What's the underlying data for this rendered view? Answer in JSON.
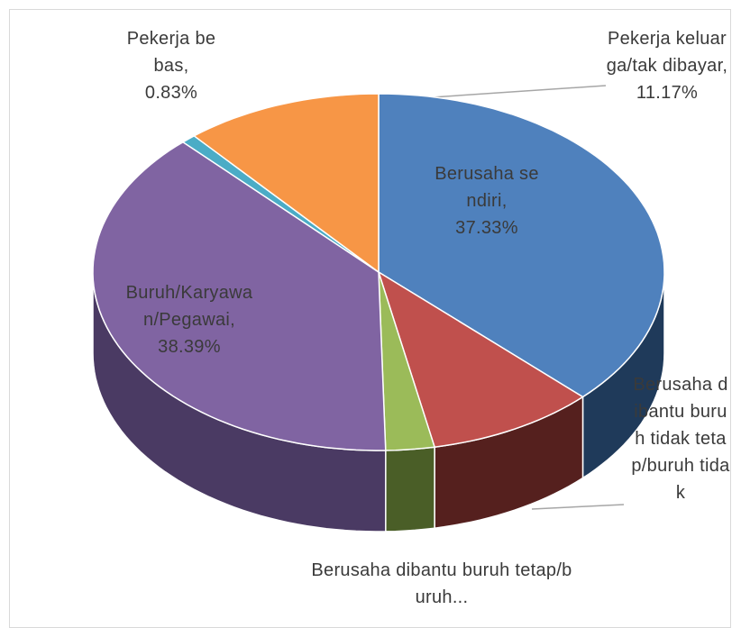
{
  "chart_data": {
    "type": "pie3d",
    "categories": [
      "Berusaha sendiri,",
      "Berusaha dibantu buruh tidak tetap/buruh tidak",
      "Berusaha dibantu buruh tetap/buruh...",
      "Buruh/Karyawan/Pegawai,",
      "Pekerja bebas,",
      "Pekerja keluarga/tak dibayar,"
    ],
    "values": [
      37.33,
      9.53,
      2.75,
      38.39,
      0.83,
      11.17
    ],
    "value_labels": [
      "37.33%",
      null,
      null,
      "38.39%",
      "0.83%",
      "11.17%"
    ],
    "colors": [
      "#4f81bd",
      "#c0504d",
      "#9bbb59",
      "#8064a2",
      "#4bacc6",
      "#f79646"
    ],
    "side_colors": [
      "#1f3a5a",
      "#55201e",
      "#4a5e27",
      "#4a3a63",
      "#2a6f80",
      "#9a5a22"
    ]
  }
}
